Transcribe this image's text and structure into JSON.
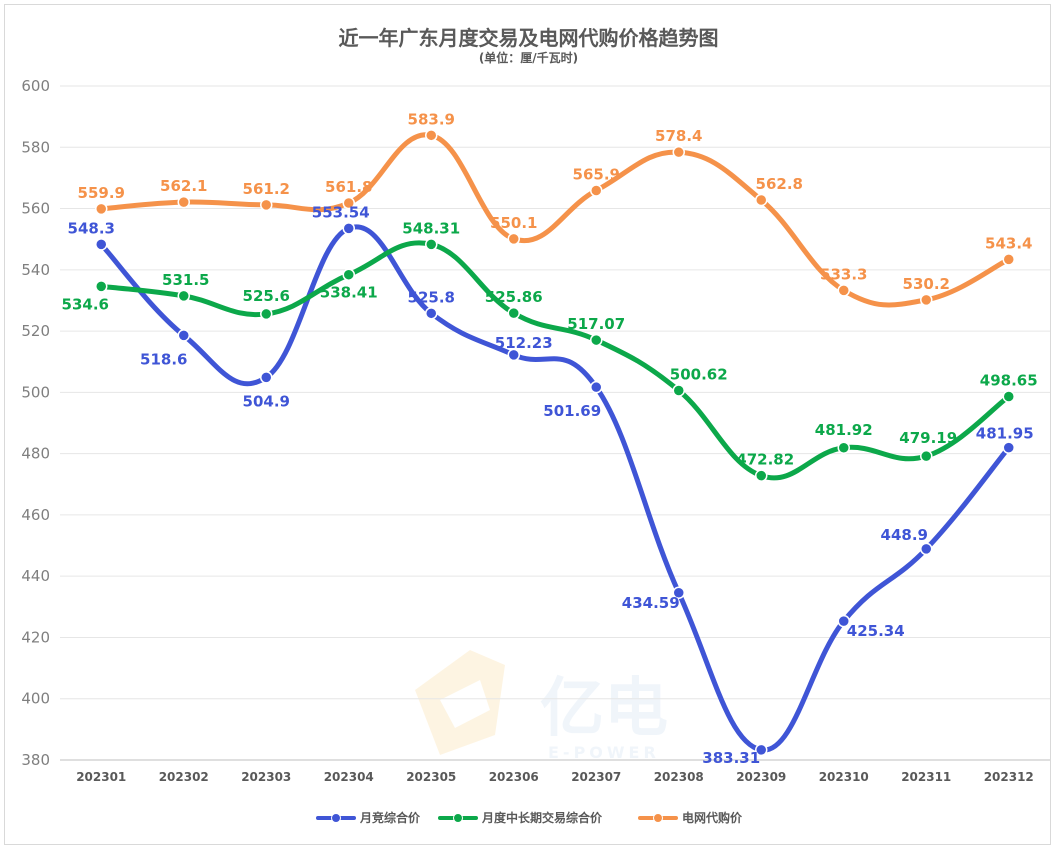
{
  "chart_data": {
    "type": "line",
    "title": "近一年广东月度交易及电网代购价格趋势图",
    "subtitle": "(单位：厘/千瓦时)",
    "categories": [
      "202301",
      "202302",
      "202303",
      "202304",
      "202305",
      "202306",
      "202307",
      "202308",
      "202309",
      "202310",
      "202311",
      "202312"
    ],
    "ylim": [
      380,
      600
    ],
    "yticks": [
      380,
      400,
      420,
      440,
      460,
      480,
      500,
      520,
      540,
      560,
      580,
      600
    ],
    "grid": true,
    "legend_position": "bottom",
    "series": [
      {
        "name": "月竞综合价",
        "color": "#3f55d6",
        "labels": [
          "548.3",
          "518.6",
          "504.9",
          "553.54",
          "525.8",
          "512.23",
          "501.69",
          "434.59",
          "383.31",
          "425.34",
          "448.9",
          "481.95"
        ],
        "values": [
          548.3,
          518.6,
          504.9,
          553.54,
          525.8,
          512.23,
          501.69,
          434.59,
          383.31,
          425.34,
          448.9,
          481.95
        ]
      },
      {
        "name": "月度中长期交易综合价",
        "color": "#0ca84a",
        "labels": [
          "534.6",
          "531.5",
          "525.6",
          "538.41",
          "548.31",
          "525.86",
          "517.07",
          "500.62",
          "472.82",
          "481.92",
          "479.19",
          "498.65"
        ],
        "values": [
          534.6,
          531.5,
          525.6,
          538.41,
          548.31,
          525.86,
          517.07,
          500.62,
          472.82,
          481.92,
          479.19,
          498.65
        ]
      },
      {
        "name": "电网代购价",
        "color": "#f5924a",
        "labels": [
          "559.9",
          "562.1",
          "561.2",
          "561.8",
          "583.9",
          "550.1",
          "565.9",
          "578.4",
          "562.8",
          "533.3",
          "530.2",
          "543.4"
        ],
        "values": [
          559.9,
          562.1,
          561.2,
          561.8,
          583.9,
          550.1,
          565.9,
          578.4,
          562.8,
          533.3,
          530.2,
          543.4
        ]
      }
    ]
  }
}
